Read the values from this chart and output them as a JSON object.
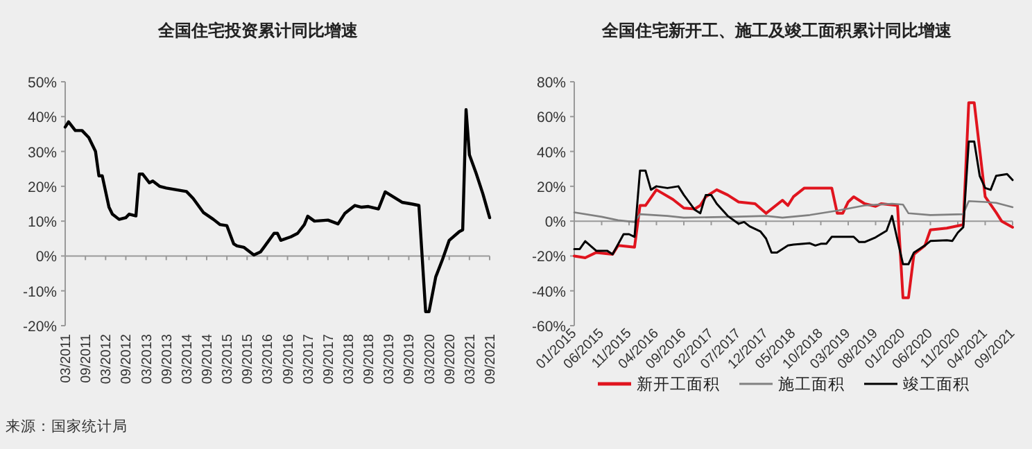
{
  "chart_data": [
    {
      "type": "line",
      "title": "全国住宅投资累计同比增速",
      "annotations": [
        "来源：国家统计局"
      ],
      "series": [
        {
          "color": "#000000",
          "x": [
            "2011-03",
            "2011-04",
            "2011-06",
            "2011-08",
            "2011-10",
            "2011-12",
            "2012-01",
            "2012-02",
            "2012-04",
            "2012-05",
            "2012-07",
            "2012-09",
            "2012-10",
            "2012-12",
            "2013-01",
            "2013-02",
            "2013-04",
            "2013-05",
            "2013-07",
            "2013-09",
            "2013-12",
            "2014-03",
            "2014-05",
            "2014-08",
            "2014-11",
            "2015-01",
            "2015-03",
            "2015-05",
            "2015-06",
            "2015-08",
            "2015-11",
            "2016-01",
            "2016-02",
            "2016-05",
            "2016-06",
            "2016-07",
            "2016-10",
            "2016-12",
            "2017-02",
            "2017-03",
            "2017-05",
            "2017-09",
            "2017-12",
            "2018-02",
            "2018-05",
            "2018-07",
            "2018-09",
            "2018-12",
            "2019-02",
            "2019-03",
            "2019-07",
            "2019-10",
            "2019-12",
            "2020-02",
            "2020-03",
            "2020-05",
            "2020-07",
            "2020-09",
            "2020-12",
            "2021-01",
            "2021-02",
            "2021-03",
            "2021-05",
            "2021-07",
            "2021-09"
          ],
          "values": [
            37,
            38.5,
            36,
            36,
            34,
            30,
            23,
            23,
            14,
            12,
            10.5,
            11,
            12,
            11.5,
            23.5,
            23.5,
            21,
            21.5,
            20,
            19.5,
            19,
            18.5,
            16.5,
            12.5,
            10.5,
            9,
            8.7,
            3.5,
            2.9,
            2.5,
            0.3,
            1.2,
            2.5,
            6.5,
            6.5,
            4.5,
            5.5,
            6.5,
            9,
            11.4,
            10,
            10.3,
            9.2,
            12.2,
            14.5,
            14,
            14.2,
            13.5,
            18.4,
            17.8,
            15.4,
            14.9,
            14.5,
            -16,
            -16,
            -6,
            -1,
            4.5,
            7,
            7.5,
            42,
            29,
            23.7,
            17.8,
            11
          ]
        }
      ],
      "xlim": [
        "2011-03",
        "2021-09"
      ],
      "xticks": [
        {
          "value": "2011-03",
          "label": "03/2011"
        },
        {
          "value": "2011-09",
          "label": "09/2011"
        },
        {
          "value": "2012-03",
          "label": "03/2012"
        },
        {
          "value": "2012-09",
          "label": "09/2012"
        },
        {
          "value": "2013-03",
          "label": "03/2013"
        },
        {
          "value": "2013-09",
          "label": "09/2013"
        },
        {
          "value": "2014-03",
          "label": "03/2014"
        },
        {
          "value": "2014-09",
          "label": "09/2014"
        },
        {
          "value": "2015-03",
          "label": "03/2015"
        },
        {
          "value": "2015-09",
          "label": "09/2015"
        },
        {
          "value": "2016-03",
          "label": "03/2016"
        },
        {
          "value": "2016-09",
          "label": "09/2016"
        },
        {
          "value": "2017-03",
          "label": "03/2017"
        },
        {
          "value": "2017-09",
          "label": "09/2017"
        },
        {
          "value": "2018-03",
          "label": "03/2018"
        },
        {
          "value": "2018-09",
          "label": "09/2018"
        },
        {
          "value": "2019-03",
          "label": "03/2019"
        },
        {
          "value": "2019-09",
          "label": "09/2019"
        },
        {
          "value": "2020-03",
          "label": "03/2020"
        },
        {
          "value": "2020-09",
          "label": "09/2020"
        },
        {
          "value": "2021-03",
          "label": "03/2021"
        },
        {
          "value": "2021-09",
          "label": "09/2021"
        }
      ],
      "ylim": [
        -20,
        50
      ],
      "yticks": [
        {
          "value": -20,
          "label": "-20%"
        },
        {
          "value": -10,
          "label": "-10%"
        },
        {
          "value": 0,
          "label": "0%"
        },
        {
          "value": 10,
          "label": "10%"
        },
        {
          "value": 20,
          "label": "20%"
        },
        {
          "value": 30,
          "label": "30%"
        },
        {
          "value": 40,
          "label": "40%"
        },
        {
          "value": 50,
          "label": "50%"
        }
      ],
      "ref_lines": [
        {
          "axis": "y",
          "value": 0,
          "color": "#999999"
        }
      ],
      "grid": false,
      "legend": false
    },
    {
      "type": "line",
      "title": "全国住宅新开工、施工及竣工面积累计同比增速",
      "series": [
        {
          "name": "新开工面积",
          "color": "#e0141e",
          "x": [
            "2015-01",
            "2015-03",
            "2015-05",
            "2015-08",
            "2015-09",
            "2015-12",
            "2016-01",
            "2016-02",
            "2016-04",
            "2016-07",
            "2016-08",
            "2016-09",
            "2016-11",
            "2016-12",
            "2017-01",
            "2017-03",
            "2017-05",
            "2017-07",
            "2017-10",
            "2017-12",
            "2018-03",
            "2018-04",
            "2018-05",
            "2018-07",
            "2018-12",
            "2019-01",
            "2019-02",
            "2019-03",
            "2019-04",
            "2019-06",
            "2019-08",
            "2019-09",
            "2019-12",
            "2020-01",
            "2020-02",
            "2020-03",
            "2020-05",
            "2020-06",
            "2020-09",
            "2020-12",
            "2021-01",
            "2021-02",
            "2021-04",
            "2021-06",
            "2021-07",
            "2021-09"
          ],
          "values": [
            -20,
            -21,
            -18,
            -19,
            -14,
            -15,
            9,
            9,
            18,
            12.5,
            10,
            7.5,
            7,
            9,
            14,
            18,
            15,
            11,
            10,
            4.5,
            12,
            9,
            14,
            19,
            19,
            4.5,
            4.5,
            11,
            14,
            10,
            8.5,
            10,
            9,
            -44,
            -44,
            -19,
            -14,
            -5,
            -4,
            -2,
            68,
            68,
            14,
            5,
            0,
            -3.5
          ]
        },
        {
          "name": "施工面积",
          "color": "#808080",
          "x": [
            "2015-01",
            "2015-06",
            "2015-09",
            "2015-12",
            "2016-01",
            "2016-06",
            "2016-09",
            "2017-06",
            "2017-12",
            "2018-03",
            "2018-08",
            "2019-01",
            "2019-06",
            "2019-11",
            "2020-01",
            "2020-02",
            "2020-06",
            "2020-12",
            "2021-01",
            "2021-04",
            "2021-06",
            "2021-09"
          ],
          "values": [
            5,
            2.5,
            0.5,
            -0.5,
            4,
            3,
            2,
            2.5,
            3,
            2,
            3.5,
            6,
            9,
            10,
            9.5,
            4.5,
            3.5,
            4,
            11.5,
            11,
            10.5,
            8
          ]
        },
        {
          "name": "竣工面积",
          "color": "#000000",
          "x": [
            "2015-01",
            "2015-02",
            "2015-03",
            "2015-05",
            "2015-07",
            "2015-08",
            "2015-10",
            "2015-11",
            "2015-12",
            "2016-01",
            "2016-02",
            "2016-03",
            "2016-04",
            "2016-06",
            "2016-08",
            "2016-09",
            "2016-11",
            "2016-12",
            "2017-01",
            "2017-02",
            "2017-03",
            "2017-05",
            "2017-07",
            "2017-08",
            "2017-09",
            "2017-11",
            "2017-12",
            "2018-01",
            "2018-02",
            "2018-04",
            "2018-05",
            "2018-08",
            "2018-09",
            "2018-10",
            "2018-11",
            "2018-12",
            "2019-04",
            "2019-05",
            "2019-06",
            "2019-08",
            "2019-10",
            "2019-11",
            "2020-01",
            "2020-02",
            "2020-03",
            "2020-05",
            "2020-06",
            "2020-09",
            "2020-10",
            "2020-11",
            "2020-12",
            "2021-01",
            "2021-02",
            "2021-03",
            "2021-04",
            "2021-05",
            "2021-06",
            "2021-08",
            "2021-09"
          ],
          "values": [
            -16,
            -16,
            -11.5,
            -17,
            -17,
            -19,
            -7.5,
            -7.5,
            -9,
            29,
            29,
            18,
            20,
            19,
            20,
            15,
            6.5,
            4.5,
            15,
            15,
            10,
            3,
            -1.5,
            -0.5,
            -3,
            -6,
            -10,
            -18,
            -18,
            -14,
            -13.5,
            -12.7,
            -14,
            -13,
            -13,
            -9,
            -9,
            -12,
            -12,
            -9.3,
            -5.5,
            3,
            -24.7,
            -24.7,
            -18,
            -14,
            -11.4,
            -11,
            -11.4,
            -6.6,
            -3.5,
            45.7,
            45.7,
            26,
            19,
            18,
            26,
            27,
            23.6
          ]
        }
      ],
      "xlim": [
        "2015-01",
        "2021-09"
      ],
      "xticks": [
        {
          "value": "2015-01",
          "label": "01/2015"
        },
        {
          "value": "2015-06",
          "label": "06/2015"
        },
        {
          "value": "2015-11",
          "label": "11/2015"
        },
        {
          "value": "2016-04",
          "label": "04/2016"
        },
        {
          "value": "2016-09",
          "label": "09/2016"
        },
        {
          "value": "2017-02",
          "label": "02/2017"
        },
        {
          "value": "2017-07",
          "label": "07/2017"
        },
        {
          "value": "2017-12",
          "label": "12/2017"
        },
        {
          "value": "2018-05",
          "label": "05/2018"
        },
        {
          "value": "2018-10",
          "label": "10/2018"
        },
        {
          "value": "2019-03",
          "label": "03/2019"
        },
        {
          "value": "2019-08",
          "label": "08/2019"
        },
        {
          "value": "2020-01",
          "label": "01/2020"
        },
        {
          "value": "2020-06",
          "label": "06/2020"
        },
        {
          "value": "2020-11",
          "label": "11/2020"
        },
        {
          "value": "2021-04",
          "label": "04/2021"
        },
        {
          "value": "2021-09",
          "label": "09/2021"
        }
      ],
      "ylim": [
        -60,
        80
      ],
      "yticks": [
        {
          "value": -60,
          "label": "-60%"
        },
        {
          "value": -40,
          "label": "-40%"
        },
        {
          "value": -20,
          "label": "-20%"
        },
        {
          "value": 0,
          "label": "0%"
        },
        {
          "value": 20,
          "label": "20%"
        },
        {
          "value": 40,
          "label": "40%"
        },
        {
          "value": 60,
          "label": "60%"
        },
        {
          "value": 80,
          "label": "80%"
        }
      ],
      "ref_lines": [
        {
          "axis": "y",
          "value": 0,
          "color": "#999999"
        }
      ],
      "grid": false,
      "legend": "bottom"
    }
  ]
}
